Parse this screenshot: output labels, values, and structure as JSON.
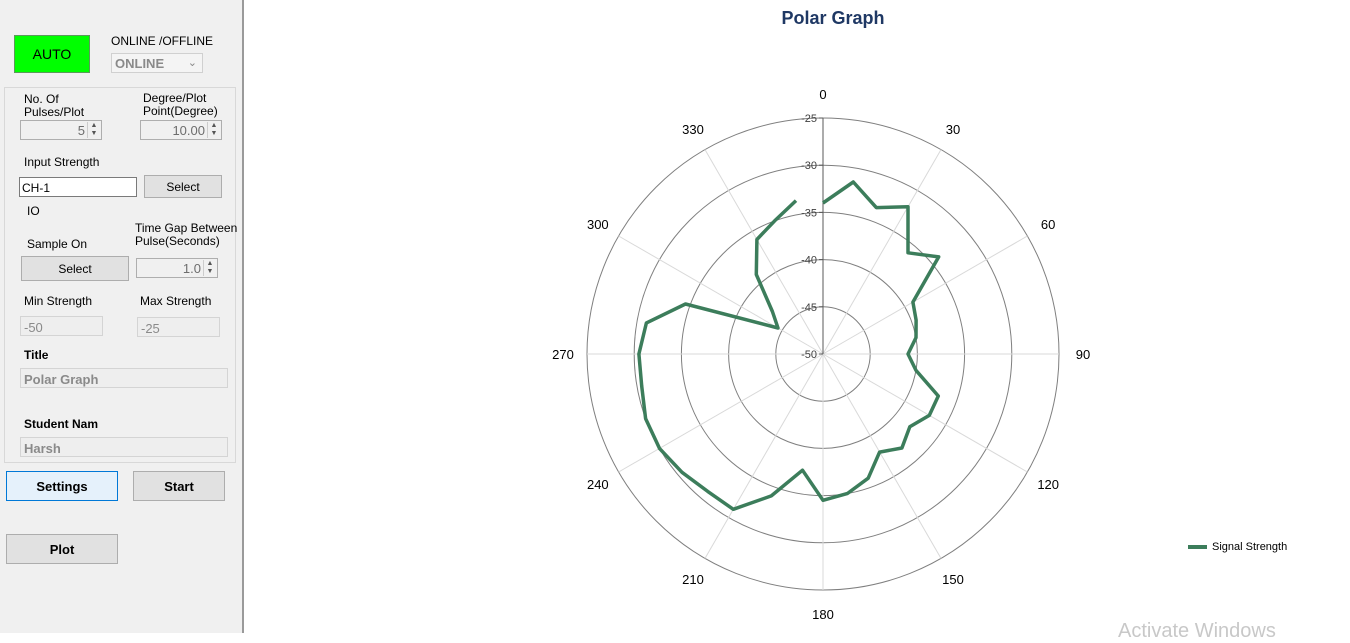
{
  "mode_button": {
    "label": "AUTO",
    "color": "#00ff00"
  },
  "online": {
    "label": "ONLINE /OFFLINE",
    "selected": "ONLINE"
  },
  "pulses": {
    "label_line1": "No. Of",
    "label_line2": "Pulses/Plot",
    "value": "5"
  },
  "degree": {
    "label_line1": "Degree/Plot",
    "label_line2": "Point(Degree)",
    "value": "10.00"
  },
  "input_strength": {
    "label": "Input Strength",
    "value": "CH-1",
    "select_label": "Select"
  },
  "io": {
    "label": "IO"
  },
  "sample_on": {
    "label": "Sample On",
    "select_label": "Select"
  },
  "time_gap": {
    "label_line1": "Time Gap Between",
    "label_line2": "Pulse(Seconds)",
    "value": "1.0"
  },
  "min_strength": {
    "label": "Min Strength",
    "value": "-50"
  },
  "max_strength": {
    "label": "Max Strength",
    "value": "-25"
  },
  "title_field": {
    "label": "Title",
    "value": "Polar Graph"
  },
  "student_field": {
    "label": "Student Nam",
    "value": "Harsh"
  },
  "buttons": {
    "settings": "Settings",
    "start": "Start",
    "plot": "Plot"
  },
  "watermark": "Activate Windows",
  "chart_data": {
    "type": "radar",
    "title": "Polar Graph",
    "angles": [
      0,
      10,
      20,
      30,
      40,
      50,
      60,
      70,
      80,
      90,
      100,
      110,
      120,
      130,
      140,
      150,
      160,
      170,
      180,
      190,
      200,
      210,
      220,
      230,
      240,
      250,
      260,
      270,
      280,
      290,
      300,
      310,
      320,
      330,
      340,
      350
    ],
    "angle_labels": [
      "0",
      "30",
      "60",
      "90",
      "120",
      "150",
      "180",
      "210",
      "240",
      "270",
      "300",
      "330"
    ],
    "radial_ticks": [
      "-25",
      "-30",
      "-35",
      "-40",
      "-45",
      "-50"
    ],
    "rlim": [
      -50,
      -25
    ],
    "series": [
      {
        "name": "Signal Strength",
        "color": "#3c7d5b",
        "values": [
          -34,
          -31.5,
          -33.5,
          -32,
          -36,
          -34,
          -39,
          -39.5,
          -40,
          -41,
          -40,
          -37,
          -37,
          -38,
          -37,
          -38,
          -36,
          -35,
          -34.5,
          -37.5,
          -34,
          -31,
          -31,
          -30.5,
          -30,
          -30,
          -30.5,
          -30.5,
          -31,
          -34.5,
          -44.5,
          -43,
          -39,
          -36,
          -35,
          -33.5
        ]
      }
    ],
    "legend_position": "right",
    "grid": true
  }
}
